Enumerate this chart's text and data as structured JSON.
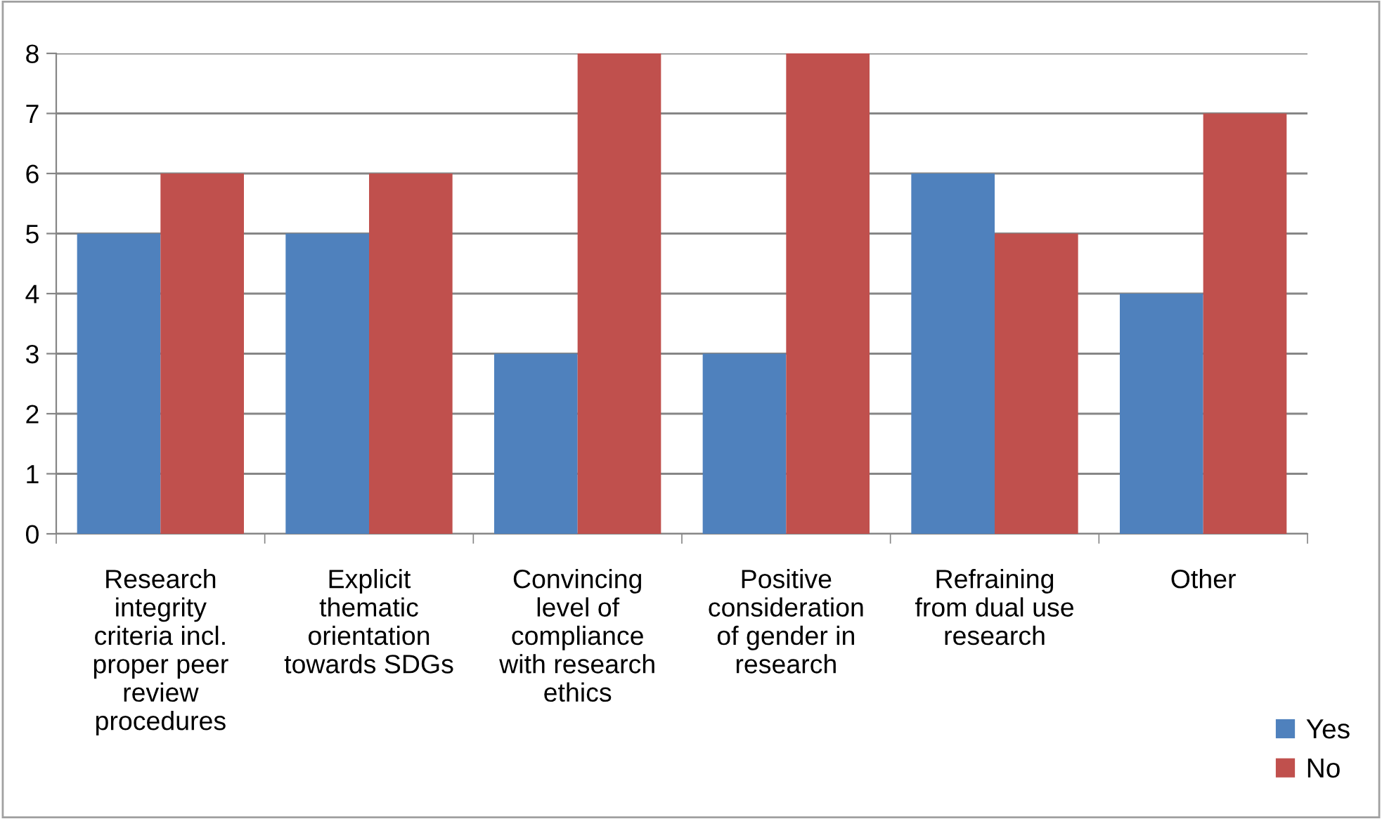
{
  "chart_data": {
    "type": "bar",
    "categories": [
      "Research integrity criteria incl. proper peer review procedures",
      "Explicit thematic orientation towards SDGs",
      "Convincing level of compliance with research ethics",
      "Positive consideration of gender in research",
      "Refraining from dual use research",
      "Other"
    ],
    "series": [
      {
        "name": "Yes",
        "color": "#4f81bd",
        "values": [
          5,
          5,
          3,
          3,
          6,
          4
        ]
      },
      {
        "name": "No",
        "color": "#c0504d",
        "values": [
          6,
          6,
          8,
          8,
          5,
          7
        ]
      }
    ],
    "ylim": [
      0,
      8
    ],
    "yticks": [
      0,
      1,
      2,
      3,
      4,
      5,
      6,
      7,
      8
    ],
    "grid": "y",
    "legend": "bottom right"
  }
}
